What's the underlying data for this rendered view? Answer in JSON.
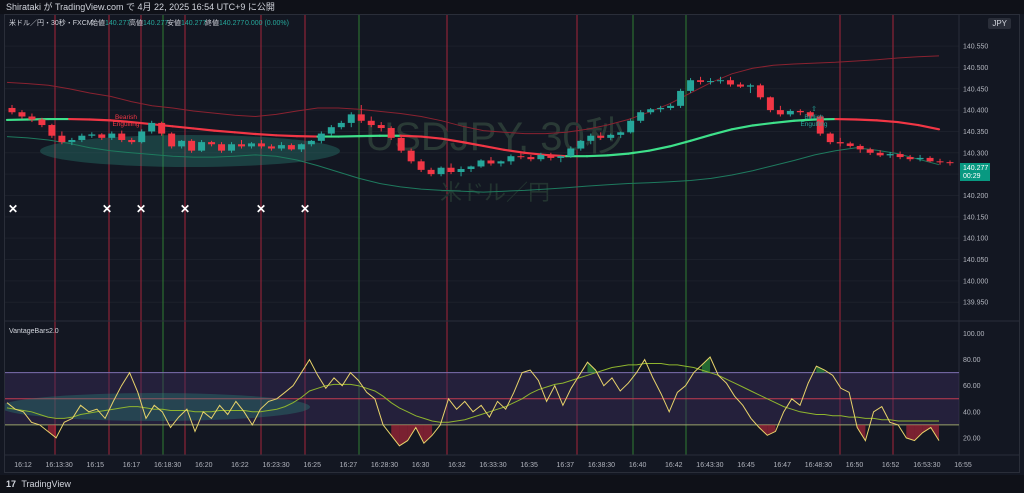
{
  "header": {
    "publish_line": "Shirataki が TradingView.com で 4月 22, 2025 16:54 UTC+9 に公開"
  },
  "legend": {
    "symbol": "米ドル／円・30秒・FXCM",
    "o_label": "始値",
    "o_val": "140.277",
    "h_label": "高値",
    "h_val": "140.277",
    "l_label": "安値",
    "l_val": "140.277",
    "c_label": "終値",
    "c_val": "140.277",
    "chg": "0.000 (0.00%)"
  },
  "currency_button": "JPY",
  "watermark": {
    "title": "USDJPY, 30秒",
    "subtitle": "米ドル／円"
  },
  "indicator_title": "VantageBars2.0",
  "annotations": {
    "bearish": [
      "Bearish",
      "Engulfing"
    ],
    "bullish_arrow": "⇧",
    "bullish": [
      "Bullish",
      "Engulfing"
    ]
  },
  "price_axis": {
    "ticks": [
      "140.550",
      "140.500",
      "140.450",
      "140.400",
      "140.350",
      "140.300",
      "140.250",
      "140.200",
      "140.150",
      "140.100",
      "140.050",
      "140.000",
      "139.950"
    ],
    "last_price": "140.277",
    "countdown": "00:29"
  },
  "osc_axis": {
    "ticks": [
      "100.00",
      "80.00",
      "60.00",
      "40.00",
      "20.00"
    ]
  },
  "time_axis": [
    "16:12",
    "16:13:30",
    "16:15",
    "16:17",
    "16:18:30",
    "16:20",
    "16:22",
    "16:23:30",
    "16:25",
    "16:27",
    "16:28:30",
    "16:30",
    "16:32",
    "16:33:30",
    "16:35",
    "16:37",
    "16:38:30",
    "16:40",
    "16:42",
    "16:43:30",
    "16:45",
    "16:47",
    "16:48:30",
    "16:50",
    "16:52",
    "16:53:30",
    "16:55"
  ],
  "footer": {
    "brand_logo": "17",
    "brand": "TradingView"
  },
  "colors": {
    "up": "#26a69a",
    "down": "#f23645",
    "ma_up": "#3ee08a",
    "ma_down": "#f23645",
    "band": "#8a2230",
    "lower_band": "#1e7a5e",
    "osc_line": "#e8d36a",
    "osc_signal": "#8fb52e",
    "red_vline": "#a5243a",
    "green_vline": "#2f7d32"
  },
  "chart_data": {
    "type": "candlestick",
    "x": [
      "16:12",
      "16:13:30",
      "16:15",
      "16:17",
      "16:18:30",
      "16:20",
      "16:22",
      "16:23:30",
      "16:25",
      "16:27",
      "16:28:30",
      "16:30",
      "16:32",
      "16:33:30",
      "16:35",
      "16:37",
      "16:38:30",
      "16:40",
      "16:42",
      "16:43:30",
      "16:45",
      "16:47",
      "16:48:30",
      "16:50",
      "16:52",
      "16:53:30",
      "16:55"
    ],
    "ylim": [
      139.92,
      140.59
    ],
    "candles": [
      [
        140.405,
        140.412,
        140.39,
        140.395
      ],
      [
        140.395,
        140.4,
        140.38,
        140.385
      ],
      [
        140.385,
        140.392,
        140.372,
        140.378
      ],
      [
        140.378,
        140.382,
        140.36,
        140.365
      ],
      [
        140.365,
        140.368,
        140.335,
        140.34
      ],
      [
        140.34,
        140.35,
        140.32,
        140.325
      ],
      [
        140.325,
        140.335,
        140.318,
        140.33
      ],
      [
        140.33,
        140.345,
        140.325,
        140.34
      ],
      [
        140.34,
        140.348,
        140.335,
        140.343
      ],
      [
        140.343,
        140.346,
        140.33,
        140.335
      ],
      [
        140.335,
        140.35,
        140.33,
        140.345
      ],
      [
        140.345,
        140.352,
        140.325,
        140.33
      ],
      [
        140.33,
        140.335,
        140.32,
        140.325
      ],
      [
        140.325,
        140.355,
        140.322,
        140.35
      ],
      [
        140.35,
        140.375,
        140.345,
        140.37
      ],
      [
        140.37,
        140.373,
        140.34,
        140.345
      ],
      [
        140.345,
        140.348,
        140.31,
        140.315
      ],
      [
        140.315,
        140.33,
        140.31,
        140.328
      ],
      [
        140.328,
        140.332,
        140.3,
        140.305
      ],
      [
        140.305,
        140.33,
        140.302,
        140.325
      ],
      [
        140.325,
        140.328,
        140.315,
        140.32
      ],
      [
        140.32,
        140.325,
        140.3,
        140.305
      ],
      [
        140.305,
        140.325,
        140.3,
        140.32
      ],
      [
        140.32,
        140.33,
        140.31,
        140.315
      ],
      [
        140.315,
        140.325,
        140.31,
        140.322
      ],
      [
        140.322,
        140.33,
        140.31,
        140.315
      ],
      [
        140.315,
        140.32,
        140.305,
        140.31
      ],
      [
        140.31,
        140.325,
        140.305,
        140.318
      ],
      [
        140.318,
        140.322,
        140.305,
        140.308
      ],
      [
        140.308,
        140.322,
        140.302,
        140.32
      ],
      [
        140.32,
        140.33,
        140.315,
        140.328
      ],
      [
        140.328,
        140.35,
        140.322,
        140.345
      ],
      [
        140.345,
        140.365,
        140.34,
        140.36
      ],
      [
        140.36,
        140.375,
        140.355,
        140.37
      ],
      [
        140.37,
        140.395,
        140.36,
        140.39
      ],
      [
        140.39,
        140.412,
        140.37,
        140.375
      ],
      [
        140.375,
        140.385,
        140.36,
        140.365
      ],
      [
        140.365,
        140.372,
        140.35,
        140.358
      ],
      [
        140.358,
        140.362,
        140.33,
        140.335
      ],
      [
        140.335,
        140.34,
        140.3,
        140.305
      ],
      [
        140.305,
        140.31,
        140.275,
        140.28
      ],
      [
        140.28,
        140.285,
        140.255,
        140.26
      ],
      [
        140.26,
        140.265,
        140.245,
        140.25
      ],
      [
        140.25,
        140.268,
        140.245,
        140.265
      ],
      [
        140.265,
        140.275,
        140.25,
        140.255
      ],
      [
        140.255,
        140.268,
        140.245,
        140.262
      ],
      [
        140.262,
        140.27,
        140.255,
        140.268
      ],
      [
        140.268,
        140.285,
        140.265,
        140.282
      ],
      [
        140.282,
        140.29,
        140.27,
        140.275
      ],
      [
        140.275,
        140.282,
        140.268,
        140.28
      ],
      [
        140.28,
        140.296,
        140.272,
        140.292
      ],
      [
        140.292,
        140.3,
        140.285,
        140.29
      ],
      [
        140.29,
        140.295,
        140.28,
        140.285
      ],
      [
        140.285,
        140.3,
        140.28,
        140.295
      ],
      [
        140.295,
        140.3,
        140.282,
        140.288
      ],
      [
        140.288,
        140.294,
        140.278,
        140.292
      ],
      [
        140.292,
        140.315,
        140.288,
        140.31
      ],
      [
        140.31,
        140.33,
        140.305,
        140.328
      ],
      [
        140.328,
        140.345,
        140.32,
        140.34
      ],
      [
        140.34,
        140.348,
        140.33,
        140.335
      ],
      [
        140.335,
        140.345,
        140.33,
        140.342
      ],
      [
        140.342,
        140.35,
        140.335,
        140.348
      ],
      [
        140.348,
        140.38,
        140.345,
        140.375
      ],
      [
        140.375,
        140.4,
        140.37,
        140.395
      ],
      [
        140.395,
        140.405,
        140.39,
        140.402
      ],
      [
        140.402,
        140.41,
        140.395,
        140.405
      ],
      [
        140.405,
        140.415,
        140.4,
        140.41
      ],
      [
        140.41,
        140.45,
        140.405,
        140.445
      ],
      [
        140.445,
        140.475,
        140.44,
        140.47
      ],
      [
        140.47,
        140.478,
        140.46,
        140.466
      ],
      [
        140.466,
        140.475,
        140.46,
        140.468
      ],
      [
        140.468,
        140.478,
        140.462,
        140.47
      ],
      [
        140.47,
        140.478,
        140.455,
        140.46
      ],
      [
        140.46,
        140.465,
        140.452,
        140.455
      ],
      [
        140.455,
        140.462,
        140.44,
        140.458
      ],
      [
        140.458,
        140.462,
        140.425,
        140.43
      ],
      [
        140.43,
        140.432,
        140.395,
        140.4
      ],
      [
        140.4,
        140.41,
        140.385,
        140.39
      ],
      [
        140.39,
        140.402,
        140.385,
        140.398
      ],
      [
        140.398,
        140.402,
        140.388,
        140.395
      ],
      [
        140.395,
        140.398,
        140.38,
        140.385
      ],
      [
        140.385,
        140.388,
        140.34,
        140.345
      ],
      [
        140.345,
        140.348,
        140.32,
        140.325
      ],
      [
        140.325,
        140.335,
        140.315,
        140.322
      ],
      [
        140.322,
        140.326,
        140.312,
        140.316
      ],
      [
        140.316,
        140.32,
        140.3,
        140.308
      ],
      [
        140.308,
        140.312,
        140.295,
        140.3
      ],
      [
        140.3,
        140.306,
        140.29,
        140.294
      ],
      [
        140.294,
        140.302,
        140.288,
        140.297
      ],
      [
        140.297,
        140.303,
        140.285,
        140.29
      ],
      [
        140.29,
        140.295,
        140.28,
        140.285
      ],
      [
        140.285,
        140.295,
        140.28,
        140.288
      ],
      [
        140.288,
        140.292,
        140.278,
        140.28
      ],
      [
        140.28,
        140.286,
        140.272,
        140.278
      ],
      [
        140.278,
        140.282,
        140.27,
        140.277
      ]
    ],
    "ma": [
      140.377,
      140.378,
      140.379,
      140.379,
      140.378,
      140.376,
      140.372,
      140.367,
      140.362,
      140.357,
      140.352,
      140.348,
      140.344,
      140.341,
      140.339,
      140.338,
      140.338,
      140.339,
      140.34,
      140.34,
      140.338,
      140.333,
      140.325,
      140.316,
      140.307,
      140.3,
      140.295,
      140.292,
      140.292,
      140.294,
      140.298,
      140.305,
      140.315,
      140.328,
      140.342,
      140.355,
      140.364,
      140.37,
      140.375,
      140.378,
      140.379,
      140.378,
      140.376,
      140.372,
      140.365,
      140.355
    ],
    "upper_band": [
      140.465,
      140.462,
      140.458,
      140.45,
      140.44,
      140.432,
      140.42,
      140.41,
      140.405,
      140.398,
      140.393,
      140.388,
      140.385,
      140.39,
      140.398,
      140.405,
      140.405,
      140.402,
      140.397,
      140.392,
      140.385,
      140.375,
      140.362,
      140.352,
      140.348,
      140.345,
      140.345,
      140.348,
      140.355,
      140.365,
      140.378,
      140.395,
      140.415,
      140.44,
      140.465,
      140.485,
      140.498,
      140.505,
      140.508,
      140.51,
      140.512,
      140.515,
      140.518,
      140.522,
      140.525,
      140.527
    ],
    "lower_band": [
      140.338,
      140.335,
      140.33,
      140.322,
      140.312,
      140.305,
      140.3,
      140.296,
      140.292,
      140.29,
      140.29,
      140.292,
      140.295,
      140.292,
      140.283,
      140.27,
      140.255,
      140.24,
      140.228,
      140.22,
      140.215,
      140.212,
      140.21,
      140.208,
      140.21,
      140.212,
      140.215,
      140.218,
      140.222,
      140.225,
      140.228,
      140.23,
      140.232,
      140.235,
      140.24,
      140.248,
      140.258,
      140.27,
      140.282,
      140.295,
      140.305,
      140.312,
      140.306,
      140.298,
      140.285,
      140.272
    ],
    "x_markers_at_index": [
      0,
      9,
      12,
      16,
      23,
      27
    ],
    "oscillator": {
      "ylim": [
        10,
        105
      ],
      "overbought": 70,
      "midline": 50,
      "oversold": 30,
      "values": [
        47,
        42,
        40,
        32,
        30,
        25,
        20,
        32,
        35,
        45,
        40,
        42,
        35,
        48,
        60,
        70,
        55,
        35,
        45,
        40,
        28,
        36,
        42,
        25,
        40,
        35,
        45,
        38,
        48,
        40,
        30,
        42,
        48,
        50,
        55,
        60,
        70,
        80,
        68,
        58,
        66,
        60,
        70,
        64,
        55,
        50,
        30,
        22,
        14,
        18,
        28,
        16,
        22,
        30,
        50,
        42,
        48,
        40,
        45,
        36,
        48,
        42,
        55,
        70,
        72,
        64,
        48,
        60,
        45,
        58,
        68,
        78,
        72,
        60,
        66,
        56,
        62,
        70,
        80,
        66,
        54,
        40,
        55,
        60,
        70,
        76,
        82,
        68,
        62,
        52,
        45,
        35,
        28,
        22,
        25,
        40,
        50,
        45,
        62,
        75,
        72,
        68,
        58,
        55,
        28,
        18,
        40,
        44,
        32,
        30,
        20,
        18,
        24,
        28,
        18
      ],
      "signal": [
        43,
        42,
        41,
        40,
        38,
        36,
        35,
        35,
        36,
        38,
        39,
        40,
        41,
        42,
        43,
        44,
        44,
        43,
        42,
        42,
        41,
        41,
        41,
        40,
        40,
        40,
        41,
        41,
        41,
        41,
        40,
        40,
        41,
        42,
        44,
        47,
        51,
        56,
        58,
        60,
        61,
        61,
        61,
        60,
        58,
        56,
        52,
        47,
        43,
        40,
        37,
        35,
        33,
        32,
        32,
        33,
        34,
        36,
        38,
        40,
        42,
        44,
        47,
        50,
        54,
        57,
        59,
        61,
        62,
        64,
        66,
        68,
        70,
        72,
        74,
        75,
        76,
        76,
        77,
        77,
        77,
        76,
        76,
        75,
        74,
        72,
        70,
        68,
        65,
        62,
        59,
        56,
        53,
        50,
        47,
        44,
        42,
        40,
        39,
        38,
        38,
        37,
        37,
        36,
        36,
        35,
        35,
        34,
        34,
        33,
        33,
        33,
        33,
        33,
        33
      ]
    }
  }
}
